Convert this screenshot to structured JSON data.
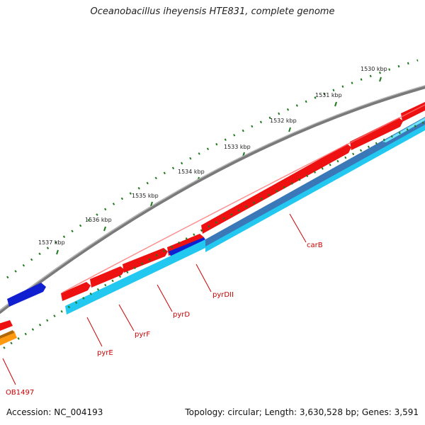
{
  "title": "Oceanobacillus iheyensis HTE831, complete genome",
  "footer": {
    "accession": "Accession: NC_004193",
    "summary": "Topology: circular; Length: 3,630,528 bp; Genes: 3,591"
  },
  "colors": {
    "backbone": "#808080",
    "tick": "#1f7a1f",
    "gene_forward": "#ee1111",
    "gene_reverse": "#22c8f0",
    "gene_reverse_overlap": "#3a78b8",
    "gene_other": "#1020d0",
    "gene_orange": "#ff9a10",
    "label": "#cc0000"
  },
  "scale": {
    "unit": "kbp",
    "labels": [
      "1530 kbp",
      "1531 kbp",
      "1532 kbp",
      "1533 kbp",
      "1534 kbp",
      "1535 kbp",
      "1536 kbp",
      "1537 kbp"
    ]
  },
  "genes": [
    {
      "name": "carB",
      "strand": "reverse"
    },
    {
      "name": "pyrDII",
      "strand": "reverse"
    },
    {
      "name": "pyrD",
      "strand": "reverse"
    },
    {
      "name": "pyrF",
      "strand": "reverse"
    },
    {
      "name": "pyrE",
      "strand": "reverse"
    },
    {
      "name": "OB1497",
      "strand": "forward"
    }
  ]
}
